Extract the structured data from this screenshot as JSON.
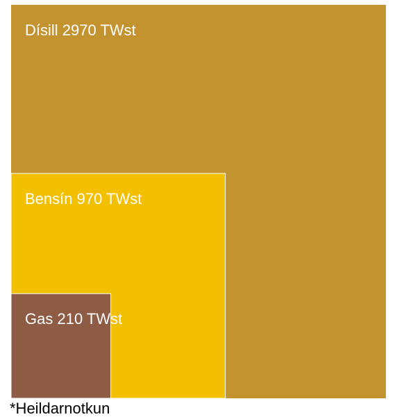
{
  "chart_data": {
    "type": "nested-squares",
    "categories": [
      "Dísill",
      "Bensín",
      "Gas"
    ],
    "values": [
      2970,
      970,
      210
    ],
    "value_labels": [
      "2970 TWst",
      "970 TWst",
      "210 TWst"
    ],
    "colors": [
      "#c39330",
      "#f2c000",
      "#8e5b45"
    ],
    "footnote": "*Heildarnotkun"
  }
}
